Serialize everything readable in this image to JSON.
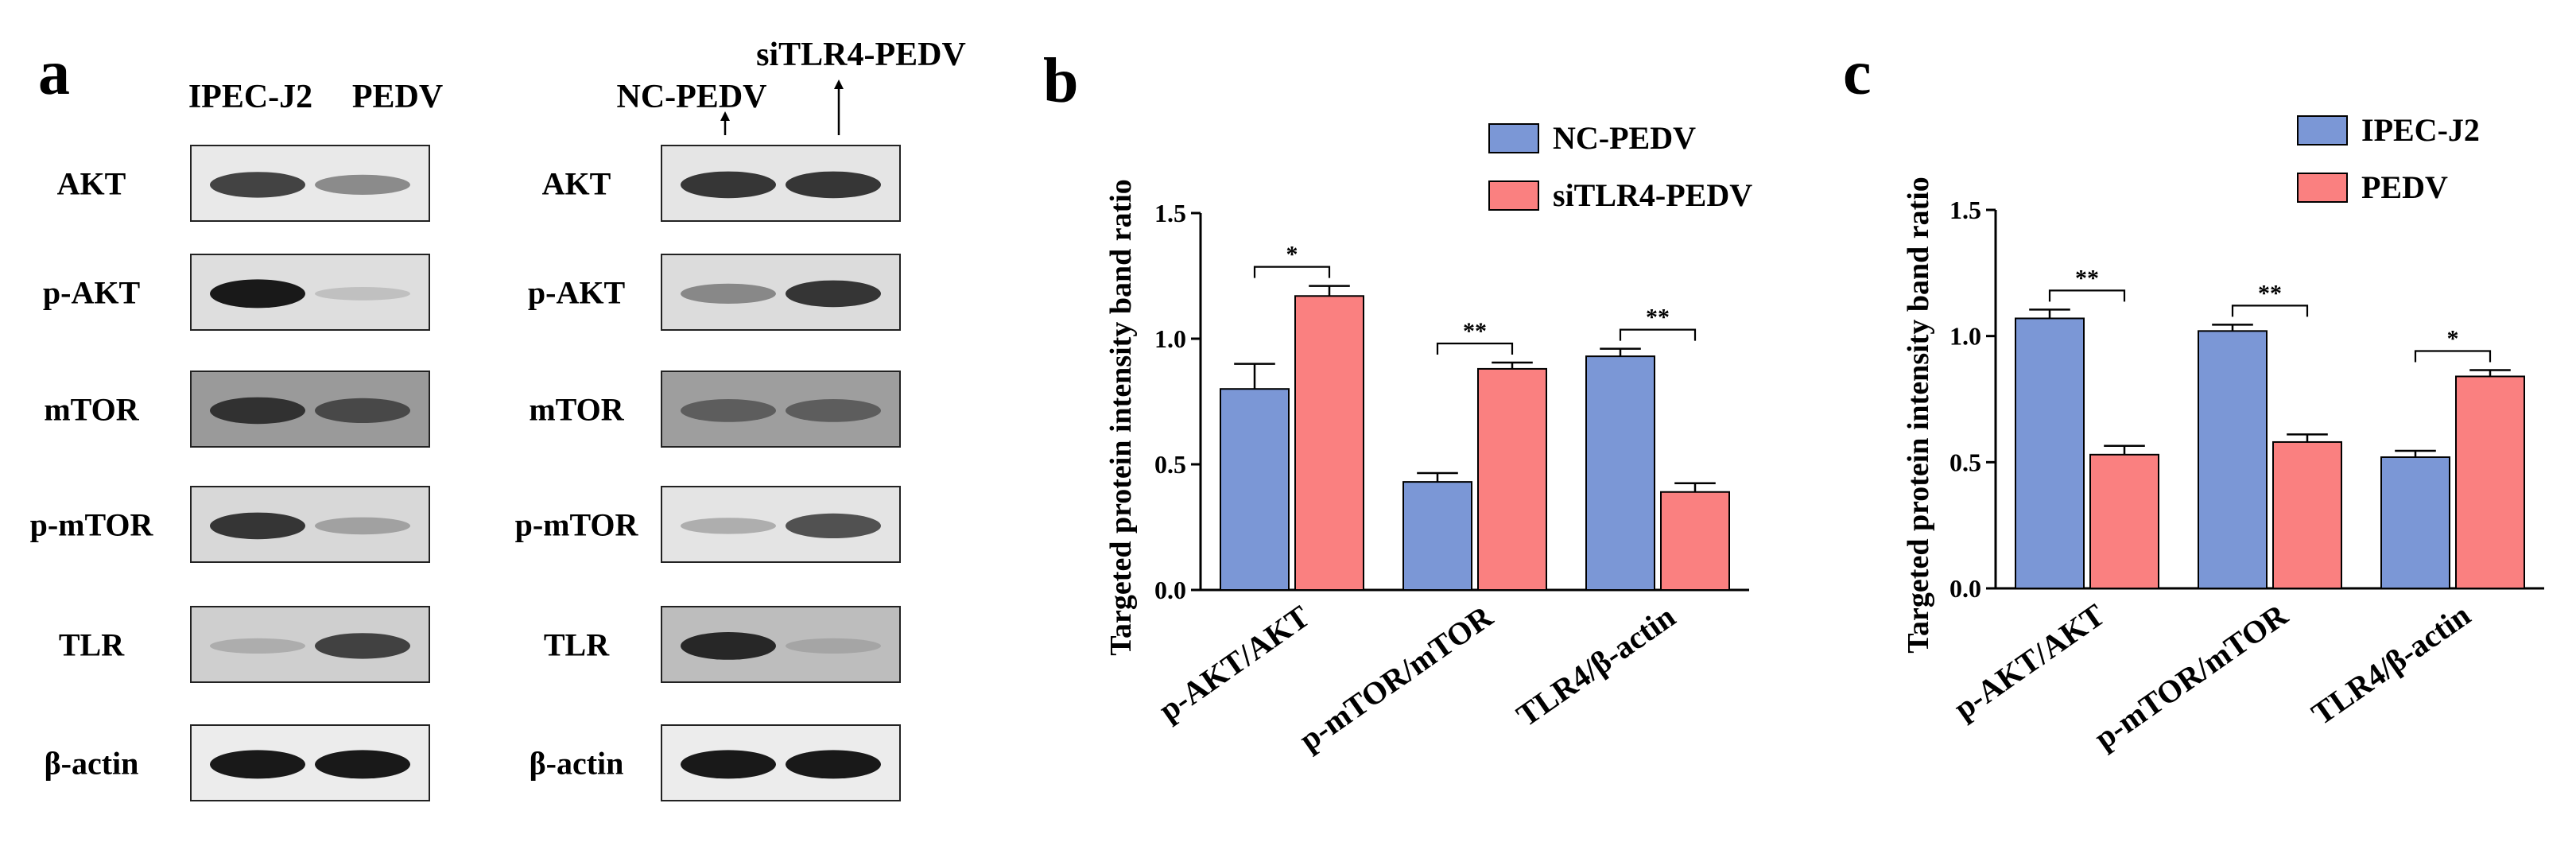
{
  "panel_a": {
    "letter": "a",
    "left_blot": {
      "lanes": [
        "IPEC-J2",
        "PEDV"
      ],
      "rows": [
        {
          "label": "AKT",
          "band_intensity": [
            0.85,
            0.55
          ],
          "background": "#e9e9e9"
        },
        {
          "label": "p-AKT",
          "band_intensity": [
            1.0,
            0.2
          ],
          "background": "#dedede"
        },
        {
          "label": "mTOR",
          "band_intensity": [
            0.9,
            0.8
          ],
          "background": "#9a9a9a"
        },
        {
          "label": "p-mTOR",
          "band_intensity": [
            0.9,
            0.4
          ],
          "background": "#d8d8d8"
        },
        {
          "label": "TLR",
          "band_intensity": [
            0.3,
            0.85
          ],
          "background": "#cfcfcf"
        },
        {
          "label": "β-actin",
          "band_intensity": [
            1.0,
            1.0
          ],
          "background": "#ececec"
        }
      ]
    },
    "right_blot": {
      "lanes": [
        "NC-PEDV",
        "siTLR4-PEDV"
      ],
      "rows": [
        {
          "label": "AKT",
          "band_intensity": [
            0.9,
            0.9
          ],
          "background": "#e5e5e5"
        },
        {
          "label": "p-AKT",
          "band_intensity": [
            0.55,
            0.9
          ],
          "background": "#dcdcdc"
        },
        {
          "label": "mTOR",
          "band_intensity": [
            0.7,
            0.7
          ],
          "background": "#9e9e9e"
        },
        {
          "label": "p-mTOR",
          "band_intensity": [
            0.35,
            0.8
          ],
          "background": "#e4e4e4"
        },
        {
          "label": "TLR",
          "band_intensity": [
            0.95,
            0.3
          ],
          "background": "#bdbdbd"
        },
        {
          "label": "β-actin",
          "band_intensity": [
            1.0,
            1.0
          ],
          "background": "#ececec"
        }
      ]
    }
  },
  "chart_data": [
    {
      "panel": "b",
      "type": "bar",
      "ylabel": "Targeted protein intensity band ratio",
      "ylim": [
        0,
        1.5
      ],
      "yticks": [
        0.0,
        0.5,
        1.0,
        1.5
      ],
      "ytick_labels": [
        "0.0",
        "0.5",
        "1.0",
        "1.5"
      ],
      "categories": [
        "p-AKT/AKT",
        "p-mTOR/mTOR",
        "TLR4/β-actin"
      ],
      "series": [
        {
          "name": "NC-PEDV",
          "color": "#7b97d6",
          "values": [
            0.8,
            0.43,
            0.93
          ],
          "errors": [
            0.1,
            0.035,
            0.03
          ]
        },
        {
          "name": "siTLR4-PEDV",
          "color": "#fa8080",
          "values": [
            1.17,
            0.88,
            0.39
          ],
          "errors": [
            0.04,
            0.025,
            0.035
          ]
        }
      ],
      "significance": [
        "*",
        "**",
        "**"
      ],
      "legend_position": "top-right"
    },
    {
      "panel": "c",
      "type": "bar",
      "ylabel": "Targeted protein intensity band ratio",
      "ylim": [
        0,
        1.5
      ],
      "yticks": [
        0.0,
        0.5,
        1.0,
        1.5
      ],
      "ytick_labels": [
        "0.0",
        "0.5",
        "1.0",
        "1.5"
      ],
      "categories": [
        "p-AKT/AKT",
        "p-mTOR/mTOR",
        "TLR4/β-actin"
      ],
      "series": [
        {
          "name": "IPEC-J2",
          "color": "#7b97d6",
          "values": [
            1.07,
            1.02,
            0.52
          ],
          "errors": [
            0.035,
            0.025,
            0.025
          ]
        },
        {
          "name": "PEDV",
          "color": "#fa8080",
          "values": [
            0.53,
            0.58,
            0.84
          ],
          "errors": [
            0.035,
            0.03,
            0.025
          ]
        }
      ],
      "significance": [
        "**",
        "**",
        "*"
      ],
      "legend_position": "top-right"
    }
  ]
}
